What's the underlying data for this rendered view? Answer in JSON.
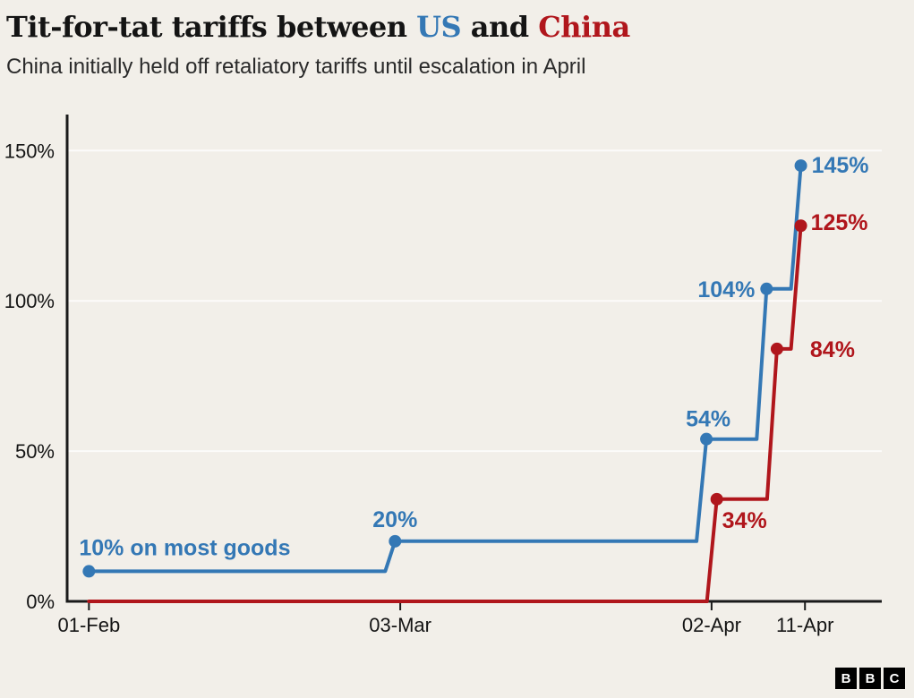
{
  "header": {
    "title_parts": [
      {
        "text": "Tit-for-tat tariffs between ",
        "color": "#141414"
      },
      {
        "text": "US",
        "color": "#3478b5"
      },
      {
        "text": " and ",
        "color": "#141414"
      },
      {
        "text": "China",
        "color": "#b0161c"
      }
    ],
    "subtitle": "China initially held off retaliatory tariffs until escalation in April"
  },
  "chart_data": {
    "type": "line",
    "step": true,
    "title": "Tit-for-tat tariffs between US and China",
    "subtitle": "China initially held off retaliatory tariffs until escalation in April",
    "x_axis": {
      "unit": "days-from-01-Feb",
      "min": -2.1,
      "max": 76.4,
      "ticks": [
        {
          "day": 0,
          "label": "01-Feb"
        },
        {
          "day": 30,
          "label": "03-Mar"
        },
        {
          "day": 60,
          "label": "02-Apr"
        },
        {
          "day": 69,
          "label": "11-Apr"
        }
      ]
    },
    "y_axis": {
      "unit": "tariff-percent",
      "min": 0,
      "max": 162,
      "ticks": [
        {
          "value": 0,
          "label": "0%"
        },
        {
          "value": 50,
          "label": "50%"
        },
        {
          "value": 100,
          "label": "100%"
        },
        {
          "value": 150,
          "label": "150%"
        }
      ],
      "gridlines": [
        50,
        100,
        150
      ]
    },
    "series": [
      {
        "name": "US",
        "color": "#3478b5",
        "points": [
          {
            "day": 0,
            "value": 10,
            "dot": true,
            "label": "10% on most goods",
            "anchor": "start",
            "dx": -11,
            "dy": -18
          },
          {
            "day": 29.5,
            "value": 20,
            "dot": true,
            "label": "20%",
            "anchor": "middle",
            "dx": 0,
            "dy": -16
          },
          {
            "day": 59.5,
            "value": 54,
            "dot": true,
            "label": "54%",
            "anchor": "middle",
            "dx": 2,
            "dy": -14
          },
          {
            "day": 65.3,
            "value": 104,
            "dot": true,
            "label": "104%",
            "anchor": "end",
            "dx": -13,
            "dy": 9
          },
          {
            "day": 68.6,
            "value": 145,
            "dot": true,
            "label": "145%",
            "anchor": "start",
            "dx": 12,
            "dy": 8
          }
        ]
      },
      {
        "name": "China",
        "color": "#b0161c",
        "points": [
          {
            "day": 0,
            "value": 0
          },
          {
            "day": 60.5,
            "value": 34,
            "dot": true,
            "label": "34%",
            "anchor": "start",
            "dx": 6,
            "dy": 32
          },
          {
            "day": 66.3,
            "value": 84,
            "dot": true,
            "label": "84%",
            "anchor": "start",
            "dx": 37,
            "dy": 9
          },
          {
            "day": 68.6,
            "value": 125,
            "dot": true,
            "label": "125%",
            "anchor": "start",
            "dx": 11,
            "dy": 5
          }
        ]
      }
    ]
  },
  "footer": {
    "logo_letters": [
      "B",
      "B",
      "C"
    ]
  }
}
